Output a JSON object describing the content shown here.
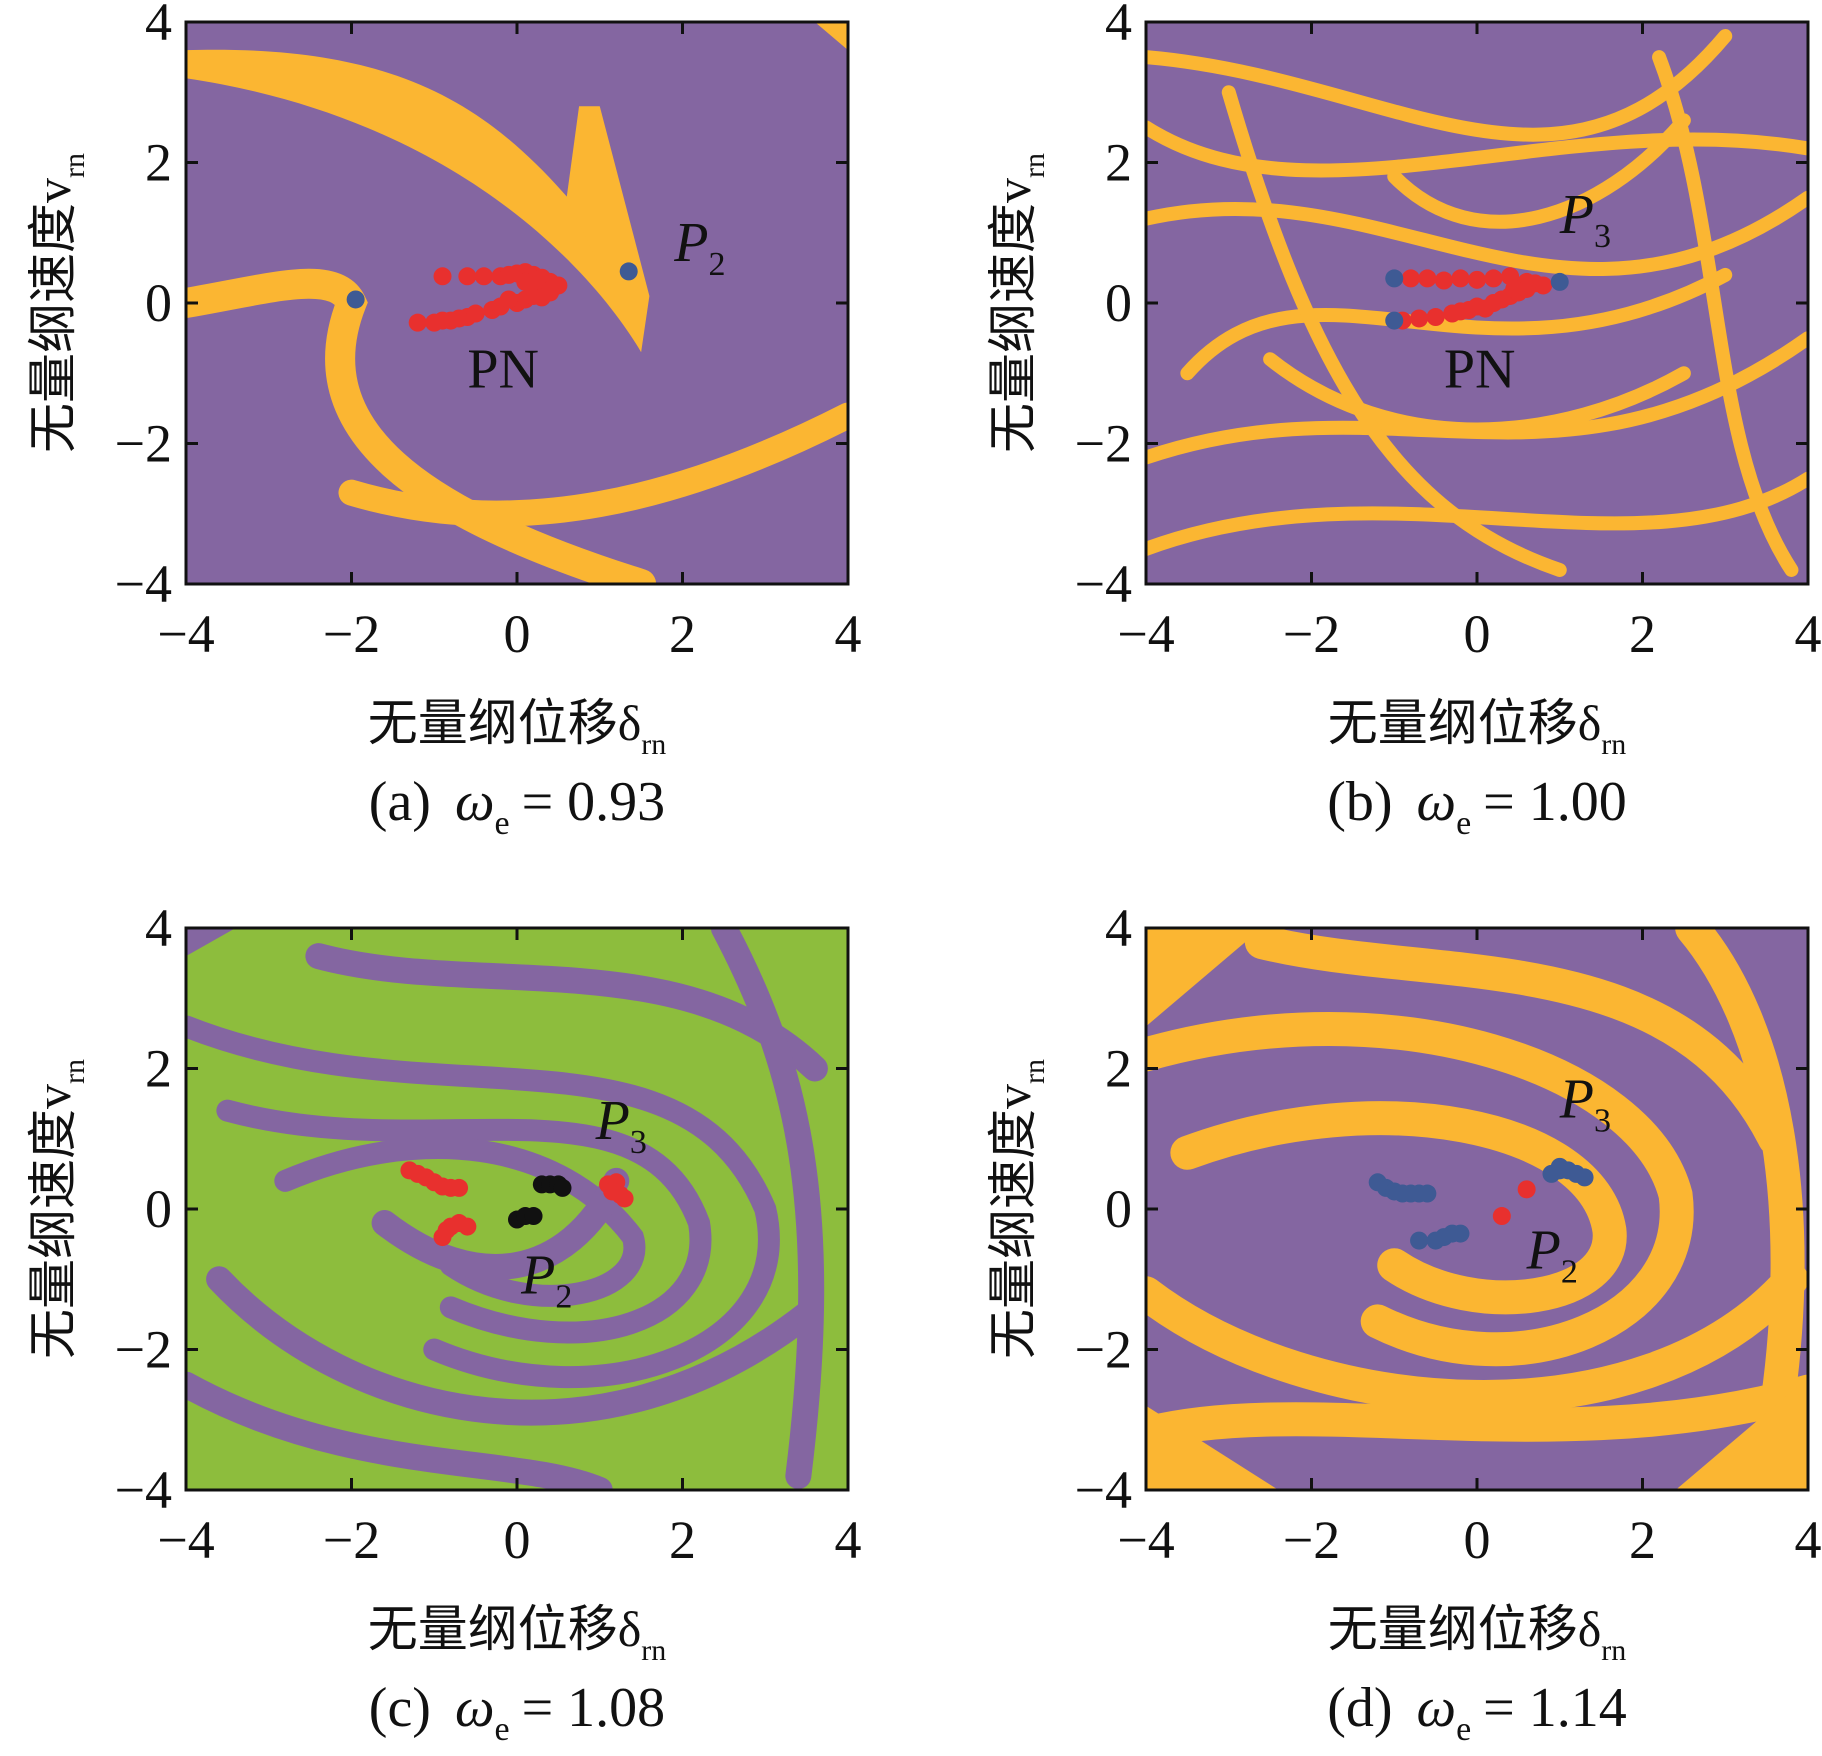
{
  "colors": {
    "purple": "#8466a1",
    "orange": "#fbb632",
    "green": "#8dbd3d",
    "red": "#e8302e",
    "blue": "#3e5a94",
    "black": "#111111"
  },
  "chart_data": [
    {
      "panel": "a",
      "type": "scatter",
      "background": "basin-of-attraction map",
      "base_color": "purple",
      "accent_color": "orange",
      "xlabel": "无量纲位移δ",
      "xlabel_sub": "rn",
      "ylabel": "无量纲速度v",
      "ylabel_sub": "rn",
      "xlim": [
        -4,
        4
      ],
      "ylim": [
        -4,
        4
      ],
      "xticks": [
        "−4",
        "−2",
        "0",
        "2",
        "4"
      ],
      "yticks": [
        "−4",
        "−2",
        "0",
        "2",
        "4"
      ],
      "caption_prefix": "(a)",
      "caption_omega": "ω",
      "caption_omega_sub": "e",
      "caption_value": "= 0.93",
      "annotations": [
        {
          "text": "P",
          "sub": "2",
          "x": 1.9,
          "y": 0.6,
          "italic": true
        },
        {
          "text": "PN",
          "sub": "",
          "x": -0.6,
          "y": -1.2,
          "italic": false
        }
      ],
      "series": [
        {
          "color": "red",
          "points": [
            [
              -0.9,
              0.38
            ],
            [
              -0.6,
              0.38
            ],
            [
              -0.4,
              0.38
            ],
            [
              -0.2,
              0.38
            ],
            [
              -0.1,
              0.4
            ],
            [
              0.0,
              0.42
            ],
            [
              0.1,
              0.44
            ],
            [
              0.2,
              0.4
            ],
            [
              0.3,
              0.36
            ],
            [
              0.4,
              0.3
            ],
            [
              0.5,
              0.25
            ],
            [
              0.1,
              0.3
            ],
            [
              0.2,
              0.2
            ],
            [
              0.3,
              0.2
            ],
            [
              0.4,
              0.18
            ],
            [
              -1.2,
              -0.28
            ],
            [
              -1.0,
              -0.28
            ],
            [
              -0.8,
              -0.25
            ],
            [
              -0.6,
              -0.2
            ],
            [
              -0.5,
              -0.15
            ],
            [
              -0.3,
              -0.1
            ],
            [
              -0.2,
              -0.05
            ],
            [
              0.0,
              0.0
            ],
            [
              0.1,
              0.05
            ],
            [
              0.2,
              0.1
            ],
            [
              0.3,
              0.08
            ],
            [
              0.4,
              0.15
            ],
            [
              -0.9,
              -0.25
            ],
            [
              -0.7,
              -0.22
            ],
            [
              -0.1,
              0.05
            ]
          ]
        },
        {
          "color": "blue",
          "points": [
            [
              -1.95,
              0.05
            ],
            [
              1.35,
              0.45
            ]
          ]
        }
      ]
    },
    {
      "panel": "b",
      "type": "scatter",
      "background": "basin-of-attraction map",
      "base_color": "purple",
      "accent_color": "orange",
      "xlabel": "无量纲位移δ",
      "xlabel_sub": "rn",
      "ylabel": "无量纲速度v",
      "ylabel_sub": "rn",
      "xlim": [
        -4,
        4
      ],
      "ylim": [
        -4,
        4
      ],
      "xticks": [
        "−4",
        "−2",
        "0",
        "2",
        "4"
      ],
      "yticks": [
        "−4",
        "−2",
        "0",
        "2",
        "4"
      ],
      "caption_prefix": "(b)",
      "caption_omega": "ω",
      "caption_omega_sub": "e",
      "caption_value": "= 1.00",
      "annotations": [
        {
          "text": "P",
          "sub": "3",
          "x": 1.0,
          "y": 1.0,
          "italic": true
        },
        {
          "text": "PN",
          "sub": "",
          "x": -0.4,
          "y": -1.2,
          "italic": false
        }
      ],
      "series": [
        {
          "color": "red",
          "points": [
            [
              -0.8,
              0.35
            ],
            [
              -0.6,
              0.35
            ],
            [
              -0.4,
              0.32
            ],
            [
              -0.2,
              0.35
            ],
            [
              0.0,
              0.33
            ],
            [
              0.2,
              0.35
            ],
            [
              0.4,
              0.38
            ],
            [
              0.6,
              0.3
            ],
            [
              0.8,
              0.25
            ],
            [
              0.7,
              0.28
            ],
            [
              -0.9,
              -0.25
            ],
            [
              -0.7,
              -0.22
            ],
            [
              -0.5,
              -0.2
            ],
            [
              -0.3,
              -0.15
            ],
            [
              -0.1,
              -0.1
            ],
            [
              0.0,
              -0.05
            ],
            [
              0.2,
              0.0
            ],
            [
              0.3,
              0.05
            ],
            [
              0.4,
              0.1
            ],
            [
              0.5,
              0.15
            ],
            [
              0.6,
              0.2
            ],
            [
              0.1,
              -0.08
            ],
            [
              -0.2,
              -0.12
            ],
            [
              0.45,
              0.2
            ]
          ]
        },
        {
          "color": "blue",
          "points": [
            [
              -1.0,
              0.35
            ],
            [
              -1.0,
              -0.25
            ],
            [
              1.0,
              0.3
            ]
          ]
        }
      ]
    },
    {
      "panel": "c",
      "type": "scatter",
      "background": "basin-of-attraction map",
      "base_color": "green",
      "accent_color": "purple",
      "xlabel": "无量纲位移δ",
      "xlabel_sub": "rn",
      "ylabel": "无量纲速度v",
      "ylabel_sub": "rn",
      "xlim": [
        -4,
        4
      ],
      "ylim": [
        -4,
        4
      ],
      "xticks": [
        "−4",
        "−2",
        "0",
        "2",
        "4"
      ],
      "yticks": [
        "−4",
        "−2",
        "0",
        "2",
        "4"
      ],
      "caption_prefix": "(c)",
      "caption_omega": "ω",
      "caption_omega_sub": "e",
      "caption_value": "= 1.08",
      "annotations": [
        {
          "text": "P",
          "sub": "3",
          "x": 0.95,
          "y": 1.0,
          "italic": true
        },
        {
          "text": "P",
          "sub": "2",
          "x": 0.05,
          "y": -1.2,
          "italic": true
        }
      ],
      "series": [
        {
          "color": "red",
          "points": [
            [
              -1.3,
              0.55
            ],
            [
              -1.2,
              0.5
            ],
            [
              -1.1,
              0.45
            ],
            [
              -1.0,
              0.38
            ],
            [
              -0.9,
              0.32
            ],
            [
              -0.8,
              0.3
            ],
            [
              -0.7,
              0.3
            ],
            [
              -0.9,
              -0.4
            ],
            [
              -0.85,
              -0.3
            ],
            [
              -0.8,
              -0.25
            ],
            [
              -0.7,
              -0.2
            ],
            [
              -0.6,
              -0.25
            ],
            [
              1.1,
              0.35
            ],
            [
              1.2,
              0.38
            ],
            [
              1.15,
              0.25
            ],
            [
              1.25,
              0.2
            ],
            [
              1.3,
              0.15
            ]
          ]
        },
        {
          "color": "black",
          "points": [
            [
              0.3,
              0.35
            ],
            [
              0.4,
              0.35
            ],
            [
              0.5,
              0.35
            ],
            [
              0.55,
              0.3
            ],
            [
              0.0,
              -0.15
            ],
            [
              0.1,
              -0.1
            ],
            [
              0.2,
              -0.1
            ]
          ]
        }
      ]
    },
    {
      "panel": "d",
      "type": "scatter",
      "background": "basin-of-attraction map",
      "base_color": "purple",
      "accent_color": "orange",
      "xlabel": "无量纲位移δ",
      "xlabel_sub": "rn",
      "ylabel": "无量纲速度v",
      "ylabel_sub": "rn",
      "xlim": [
        -4,
        4
      ],
      "ylim": [
        -4,
        4
      ],
      "xticks": [
        "−4",
        "−2",
        "0",
        "2",
        "4"
      ],
      "yticks": [
        "−4",
        "−2",
        "0",
        "2",
        "4"
      ],
      "caption_prefix": "(d)",
      "caption_omega": "ω",
      "caption_omega_sub": "e",
      "caption_value": "= 1.14",
      "annotations": [
        {
          "text": "P",
          "sub": "3",
          "x": 1.0,
          "y": 1.3,
          "italic": true
        },
        {
          "text": "P",
          "sub": "2",
          "x": 0.6,
          "y": -0.85,
          "italic": true
        }
      ],
      "series": [
        {
          "color": "blue",
          "points": [
            [
              -1.2,
              0.38
            ],
            [
              -1.1,
              0.3
            ],
            [
              -1.0,
              0.25
            ],
            [
              -0.9,
              0.22
            ],
            [
              -0.8,
              0.22
            ],
            [
              -0.7,
              0.22
            ],
            [
              -0.6,
              0.22
            ],
            [
              -0.7,
              -0.45
            ],
            [
              -0.5,
              -0.45
            ],
            [
              -0.4,
              -0.4
            ],
            [
              -0.3,
              -0.35
            ],
            [
              -0.2,
              -0.35
            ],
            [
              0.9,
              0.5
            ],
            [
              1.0,
              0.55
            ],
            [
              1.1,
              0.55
            ],
            [
              1.2,
              0.5
            ],
            [
              1.3,
              0.45
            ],
            [
              1.0,
              0.6
            ]
          ]
        },
        {
          "color": "red",
          "points": [
            [
              0.6,
              0.28
            ],
            [
              0.3,
              -0.1
            ]
          ]
        }
      ]
    }
  ]
}
